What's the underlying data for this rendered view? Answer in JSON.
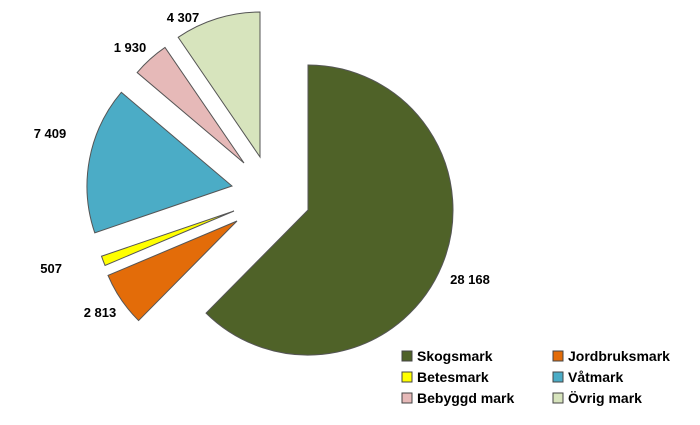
{
  "chart_data": {
    "type": "pie",
    "categories": [
      "Skogsmark",
      "Jordbruksmark",
      "Betesmark",
      "Våtmark",
      "Bebyggd mark",
      "Övrig mark"
    ],
    "values": [
      28168,
      2813,
      507,
      7409,
      1930,
      4307
    ],
    "labels": [
      "28 168",
      "2 813",
      "507",
      "7 409",
      "1 930",
      "4 307"
    ],
    "colors": [
      "#4f6228",
      "#e36c09",
      "#ffff00",
      "#4bacc6",
      "#e6b9b8",
      "#d7e4bd"
    ],
    "exploded": true,
    "start_angle": "12 o'clock",
    "direction": "clockwise",
    "legend_position": "bottom-right",
    "legend_columns": 2
  }
}
